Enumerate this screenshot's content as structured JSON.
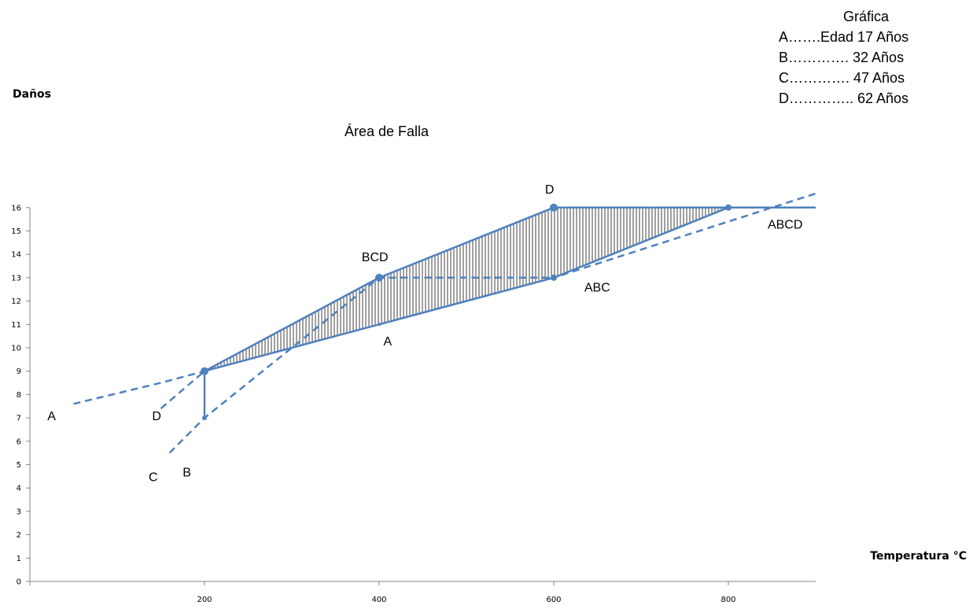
{
  "chart_data": {
    "type": "line",
    "ylabel": "Daños",
    "xlabel": "Temperatura °C",
    "annotation_title": "Área de Falla",
    "xlim": [
      0,
      900
    ],
    "ylim": [
      0,
      16
    ],
    "xticks": [
      200,
      400,
      600,
      800
    ],
    "yticks": [
      0,
      1,
      2,
      3,
      4,
      5,
      6,
      7,
      8,
      9,
      10,
      11,
      12,
      13,
      14,
      15,
      16
    ],
    "grid": false,
    "legend": {
      "title": "Gráfica",
      "entries": [
        "A…….Edad 17 Años",
        "B………….  32 Años",
        "C………….  47 Años",
        "D…………..  62 Años"
      ]
    },
    "series": [
      {
        "name": "A",
        "points": [
          [
            50,
            7.6
          ],
          [
            200,
            9
          ],
          [
            400,
            11
          ],
          [
            600,
            13
          ],
          [
            800,
            16
          ]
        ],
        "style": "dashed-then-solid"
      },
      {
        "name": "B",
        "points": [
          [
            160,
            5.5
          ],
          [
            200,
            7
          ],
          [
            400,
            13
          ],
          [
            600,
            13
          ],
          [
            800,
            16
          ],
          [
            900,
            16
          ]
        ],
        "style": "dashed"
      },
      {
        "name": "C",
        "points": [
          [
            200,
            9
          ],
          [
            400,
            13
          ],
          [
            600,
            16
          ],
          [
            900,
            16
          ]
        ],
        "style": "dashed-then-solid"
      },
      {
        "name": "D",
        "points": [
          [
            150,
            7.4
          ],
          [
            200,
            9
          ],
          [
            400,
            13
          ],
          [
            600,
            16
          ],
          [
            800,
            16
          ]
        ],
        "style": "solid"
      }
    ],
    "failure_area": [
      [
        200,
        7
      ],
      [
        200,
        9
      ],
      [
        400,
        13
      ],
      [
        600,
        16
      ],
      [
        800,
        16
      ],
      [
        600,
        13
      ],
      [
        400,
        11
      ],
      [
        200,
        9
      ]
    ],
    "point_labels": [
      {
        "text": "A",
        "x": 20,
        "y": 6.9
      },
      {
        "text": "D",
        "x": 140,
        "y": 6.9
      },
      {
        "text": "C",
        "x": 136,
        "y": 4.3
      },
      {
        "text": "B",
        "x": 175,
        "y": 4.5
      },
      {
        "text": "BCD",
        "x": 380,
        "y": 13.7
      },
      {
        "text": "D",
        "x": 590,
        "y": 16.6
      },
      {
        "text": "ABC",
        "x": 635,
        "y": 12.4
      },
      {
        "text": "A",
        "x": 405,
        "y": 10.1
      },
      {
        "text": "ABCD",
        "x": 845,
        "y": 15.1
      }
    ]
  },
  "colors": {
    "line": "#4f81bd",
    "axis": "#868686",
    "hatch": "#404040"
  }
}
